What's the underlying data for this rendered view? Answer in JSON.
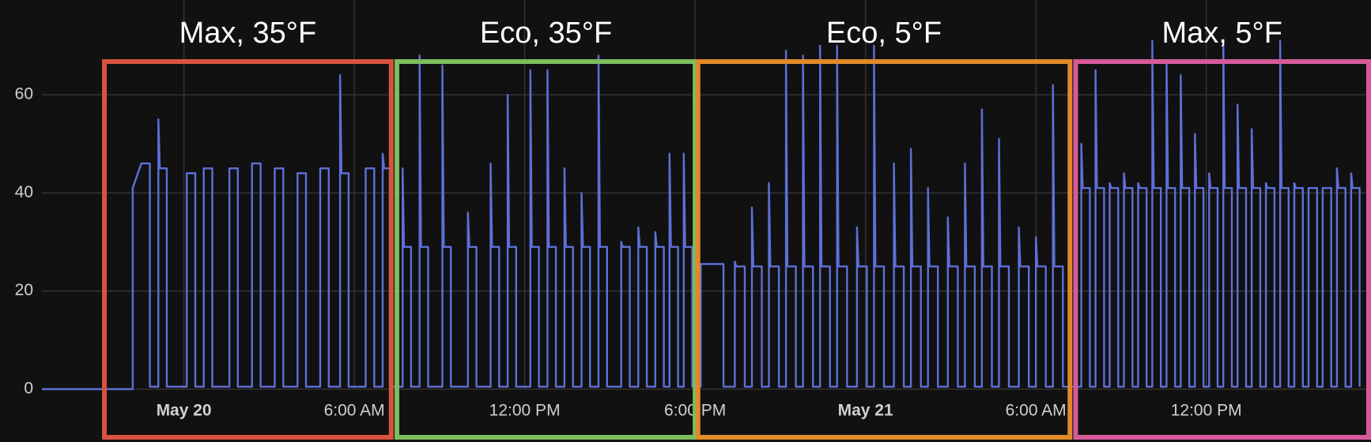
{
  "chart_data": {
    "type": "line",
    "color": "#5d70d8",
    "grid": true,
    "xlim": [
      -5,
      41.8
    ],
    "ylim": [
      0,
      79
    ],
    "yticks": [
      0,
      20,
      40,
      60
    ],
    "xticks": [
      {
        "value": 0,
        "label": "May 20"
      },
      {
        "value": 6,
        "label": "6:00 AM"
      },
      {
        "value": 12,
        "label": "12:00 PM"
      },
      {
        "value": 18,
        "label": "6:00 PM"
      },
      {
        "value": 24,
        "label": "May 21"
      },
      {
        "value": 30,
        "label": "6:00 AM"
      },
      {
        "value": 36,
        "label": "12:00 PM"
      }
    ],
    "annotations": [
      {
        "text": "Max, 35°F",
        "color": "#d9533f",
        "x": [
          -2.8,
          7.3
        ]
      },
      {
        "text": "Eco, 35°F",
        "color": "#7cbd5f",
        "x": [
          7.5,
          18
        ]
      },
      {
        "text": "Eco, 5°F",
        "color": "#e08a2a",
        "x": [
          18.1,
          31.2
        ]
      },
      {
        "text": "Max, 5°F",
        "color": "#d65a9a",
        "x": [
          31.4,
          41.8
        ]
      }
    ],
    "x": [
      -5,
      -1.8,
      -1.8,
      -1.5,
      -1.2,
      -1.2,
      -0.9,
      -0.9,
      -0.85,
      -0.6,
      -0.6,
      0.1,
      0.1,
      0.15,
      0.4,
      0.4,
      0.7,
      0.7,
      0.75,
      1,
      1,
      1.6,
      1.6,
      1.65,
      1.9,
      1.9,
      2.4,
      2.4,
      2.45,
      2.7,
      2.7,
      3.2,
      3.2,
      3.25,
      3.5,
      3.5,
      4,
      4,
      4.05,
      4.3,
      4.3,
      4.8,
      4.8,
      4.85,
      5.1,
      5.1,
      5.5,
      5.5,
      5.55,
      5.8,
      5.8,
      6.4,
      6.4,
      6.45,
      6.7,
      6.7,
      7,
      7,
      7.05,
      7.25,
      7.25,
      7.7,
      7.7,
      7.75,
      8,
      8,
      8.3,
      8.3,
      8.35,
      8.6,
      8.6,
      9.1,
      9.1,
      9.15,
      9.4,
      9.4,
      10,
      10,
      10.05,
      10.3,
      10.3,
      10.8,
      10.8,
      10.85,
      11.1,
      11.1,
      11.4,
      11.4,
      11.45,
      11.7,
      11.7,
      12.2,
      12.2,
      12.25,
      12.5,
      12.5,
      12.8,
      12.8,
      12.85,
      13.1,
      13.1,
      13.4,
      13.4,
      13.45,
      13.7,
      13.7,
      14,
      14,
      14.05,
      14.3,
      14.3,
      14.6,
      14.6,
      14.65,
      14.9,
      14.9,
      15.4,
      15.4,
      15.45,
      15.7,
      15.7,
      16,
      16,
      16.05,
      16.3,
      16.3,
      16.6,
      16.6,
      16.65,
      16.9,
      16.9,
      17.1,
      17.1,
      17.15,
      17.4,
      17.4,
      17.6,
      17.6,
      17.65,
      17.9,
      17.9,
      18.2,
      18.2,
      19,
      19,
      19.4,
      19.4,
      19.45,
      19.75,
      19.75,
      20,
      20,
      20.05,
      20.35,
      20.35,
      20.6,
      20.6,
      20.65,
      20.95,
      20.95,
      21.2,
      21.2,
      21.25,
      21.55,
      21.55,
      21.8,
      21.8,
      21.85,
      22.15,
      22.15,
      22.4,
      22.4,
      22.45,
      22.75,
      22.75,
      23,
      23,
      23.05,
      23.35,
      23.35,
      23.7,
      23.7,
      23.75,
      24.05,
      24.05,
      24.3,
      24.3,
      24.35,
      24.65,
      24.65,
      25,
      25,
      25.05,
      25.35,
      25.35,
      25.6,
      25.6,
      25.65,
      25.95,
      25.95,
      26.2,
      26.2,
      26.25,
      26.55,
      26.55,
      26.9,
      26.9,
      26.95,
      27.25,
      27.25,
      27.5,
      27.5,
      27.55,
      27.85,
      27.85,
      28.1,
      28.1,
      28.15,
      28.45,
      28.45,
      28.7,
      28.7,
      28.75,
      29.05,
      29.05,
      29.4,
      29.4,
      29.45,
      29.75,
      29.75,
      30,
      30,
      30.05,
      30.35,
      30.35,
      30.6,
      30.6,
      30.65,
      30.95,
      30.95,
      31.6,
      31.6,
      31.65,
      31.9,
      31.9,
      32.1,
      32.1,
      32.15,
      32.4,
      32.4,
      32.6,
      32.6,
      32.65,
      32.9,
      32.9,
      33.1,
      33.1,
      33.15,
      33.4,
      33.4,
      33.6,
      33.6,
      33.65,
      33.9,
      33.9,
      34.1,
      34.1,
      34.15,
      34.4,
      34.4,
      34.6,
      34.6,
      34.65,
      34.9,
      34.9,
      35.1,
      35.1,
      35.15,
      35.4,
      35.4,
      35.6,
      35.6,
      35.65,
      35.9,
      35.9,
      36.1,
      36.1,
      36.15,
      36.4,
      36.4,
      36.6,
      36.6,
      36.65,
      36.9,
      36.9,
      37.1,
      37.1,
      37.15,
      37.4,
      37.4,
      37.6,
      37.6,
      37.65,
      37.9,
      37.9,
      38.1,
      38.1,
      38.15,
      38.4,
      38.4,
      38.6,
      38.6,
      38.65,
      38.9,
      38.9,
      39.1,
      39.1,
      39.15,
      39.4,
      39.4,
      39.6,
      39.6,
      39.65,
      39.9,
      39.9,
      40.1,
      40.1,
      40.15,
      40.4,
      40.4,
      40.6,
      40.6,
      40.65,
      40.9,
      40.9,
      41.1,
      41.1,
      41.15,
      41.4,
      41.4
    ],
    "values": [
      0,
      0,
      41,
      46,
      46,
      0.5,
      0.5,
      55,
      45,
      45,
      0.5,
      0.5,
      44,
      44,
      44,
      0.5,
      0.5,
      45,
      45,
      45,
      0.5,
      0.5,
      45,
      45,
      45,
      0.5,
      0.5,
      46,
      46,
      46,
      0.5,
      0.5,
      45,
      45,
      45,
      0.5,
      0.5,
      44,
      44,
      44,
      0.5,
      0.5,
      45,
      45,
      45,
      0.5,
      0.5,
      64,
      44,
      44,
      0.5,
      0.5,
      45,
      45,
      45,
      0.5,
      0.5,
      48,
      45,
      45,
      0.5,
      0.5,
      45,
      29,
      29,
      0.5,
      0.5,
      68,
      29,
      29,
      0.5,
      0.5,
      66,
      29,
      29,
      0.5,
      0.5,
      36,
      29,
      29,
      0.5,
      0.5,
      46,
      29,
      29,
      0.5,
      0.5,
      60,
      29,
      29,
      0.5,
      0.5,
      65,
      29,
      29,
      0.5,
      0.5,
      65,
      29,
      29,
      0.5,
      0.5,
      45,
      29,
      29,
      0.5,
      0.5,
      40,
      29,
      29,
      0.5,
      0.5,
      68,
      29,
      29,
      0.5,
      0.5,
      30,
      29,
      29,
      0.5,
      0.5,
      33,
      29,
      29,
      0.5,
      0.5,
      32,
      29,
      29,
      0.5,
      0.5,
      48,
      29,
      29,
      0.5,
      0.5,
      48,
      29,
      29,
      0.5,
      0.5,
      25.5,
      25.5,
      0.5,
      0.5,
      26,
      25,
      25,
      0.5,
      0.5,
      37,
      25,
      25,
      0.5,
      0.5,
      42,
      25,
      25,
      0.5,
      0.5,
      69,
      25,
      25,
      0.5,
      0.5,
      68,
      25,
      25,
      0.5,
      0.5,
      70,
      25,
      25,
      0.5,
      0.5,
      70,
      25,
      25,
      0.5,
      0.5,
      33,
      25,
      25,
      0.5,
      0.5,
      70,
      25,
      25,
      0.5,
      0.5,
      46,
      25,
      25,
      0.5,
      0.5,
      49,
      25,
      25,
      0.5,
      0.5,
      41,
      25,
      25,
      0.5,
      0.5,
      35,
      25,
      25,
      0.5,
      0.5,
      46,
      25,
      25,
      0.5,
      0.5,
      57,
      25,
      25,
      0.5,
      0.5,
      51,
      25,
      25,
      0.5,
      0.5,
      33,
      25,
      25,
      0.5,
      0.5,
      31,
      25,
      25,
      0.5,
      0.5,
      62,
      25,
      25,
      0.5,
      0.5,
      50,
      41,
      41,
      0.5,
      0.5,
      65,
      41,
      41,
      0.5,
      0.5,
      42,
      41,
      41,
      0.5,
      0.5,
      44,
      41,
      41,
      0.5,
      0.5,
      42,
      41,
      41,
      0.5,
      0.5,
      71,
      41,
      41,
      0.5,
      0.5,
      67,
      41,
      41,
      0.5,
      0.5,
      64,
      41,
      41,
      0.5,
      0.5,
      52,
      41,
      41,
      0.5,
      0.5,
      44,
      41,
      41,
      0.5,
      0.5,
      71,
      41,
      41,
      0.5,
      0.5,
      58,
      41,
      41,
      0.5,
      0.5,
      53,
      41,
      41,
      0.5,
      0.5,
      42,
      41,
      41,
      0.5,
      0.5,
      71,
      41,
      41,
      0.5,
      0.5,
      42,
      41,
      41,
      0.5,
      0.5,
      41,
      41,
      41,
      0.5,
      0.5,
      41,
      41,
      41,
      0.5,
      0.5,
      45,
      41,
      41,
      0.5,
      0.5,
      44,
      41,
      41,
      0.5
    ]
  }
}
